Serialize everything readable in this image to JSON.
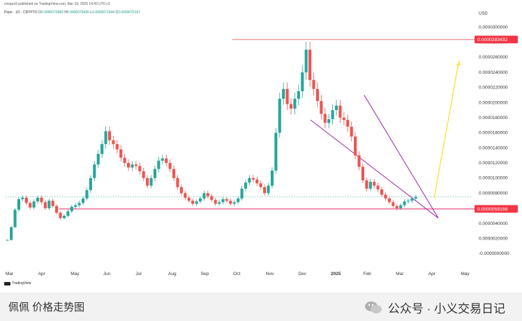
{
  "header": {
    "published": "crispus9 published on TradingView.com, Mar 19, 2025 14:43 UTC+3",
    "symbol": "Pepe · 1D · CRYPTO",
    "ohlc": [
      {
        "label": "O",
        "value": "0.0000072882"
      },
      {
        "label": "H",
        "value": "0.0000075430"
      },
      {
        "label": "L",
        "value": "0.0000071644"
      },
      {
        "label": "C",
        "value": "0.0000075167"
      }
    ]
  },
  "brand": {
    "tradingview": "TradingView"
  },
  "footer": {
    "left": "佩佩 价格走势图",
    "right": "公众号 · 小义交易日记"
  },
  "colors": {
    "up": "#26a69a",
    "down": "#ef5350",
    "support_line": "#e91e63",
    "resistance_line": "#e57373",
    "wedge": "#9c27b0",
    "projection": "#ffd600",
    "price_badge": "#f23645"
  },
  "chart_data": {
    "type": "line",
    "title": "",
    "xlabel": "",
    "ylabel": "",
    "currency": "USD",
    "ylim": [
      -1e-06,
      3.1e-05
    ],
    "y_ticks": [
      "0.0000300000",
      "0.0000280000",
      "0.0000260000",
      "0.0000240000",
      "0.0000220000",
      "0.0000200000",
      "0.0000180000",
      "0.0000160000",
      "0.0000140000",
      "0.0000120000",
      "0.0000100000",
      "0.0000080000",
      "0.0000060000",
      "0.0000040000",
      "0.0000020000",
      "-0.0000000000"
    ],
    "x_ticks": [
      "Mar",
      "Apr",
      "May",
      "Jun",
      "Jul",
      "Aug",
      "Sep",
      "Oct",
      "Nov",
      "Dec",
      "2025",
      "Feb",
      "Mar",
      "Apr",
      "May"
    ],
    "series": [
      {
        "values": [
          1.8e-06,
          3.5e-06,
          5.8e-06,
          7.2e-06,
          7.4e-06,
          6.7e-06,
          6.1e-06,
          6.9e-06,
          7.4e-06,
          6.8e-06,
          6e-06,
          7e-06,
          6.3e-06,
          5.4e-06,
          4.7e-06,
          5e-06,
          5.6e-06,
          6.2e-06,
          6.4e-06,
          6.7e-06,
          7.3e-06,
          8.4e-06,
          1e-05,
          1.18e-05,
          1.32e-05,
          1.45e-05,
          1.62e-05,
          1.5e-05,
          1.45e-05,
          1.38e-05,
          1.27e-05,
          1.2e-05,
          1.14e-05,
          1.18e-05,
          1.16e-05,
          1.09e-05,
          1e-05,
          9e-06,
          1e-05,
          1.12e-05,
          1.23e-05,
          1.26e-05,
          1.2e-05,
          1.12e-05,
          1e-05,
          8.8e-06,
          8e-06,
          7.4e-06,
          7e-06,
          6.6e-06,
          6.9e-06,
          7.3e-06,
          8e-06,
          7.6e-06,
          7.1e-06,
          6.6e-06,
          6.8e-06,
          7.2e-06,
          7e-06,
          6.6e-06,
          6.8e-06,
          7.3e-06,
          8.6e-06,
          9.4e-06,
          1e-05,
          9.8e-06,
          9.3e-06,
          8.8e-06,
          8e-06,
          9e-06,
          1.1e-05,
          1.6e-05,
          2.05e-05,
          2.18e-05,
          1.98e-05,
          1.92e-05,
          2.05e-05,
          2.15e-05,
          2.4e-05,
          2.7e-05,
          2.3e-05,
          2.18e-05,
          2.02e-05,
          1.85e-05,
          1.73e-05,
          1.78e-05,
          1.9e-05,
          1.96e-05,
          1.8e-05,
          1.77e-05,
          1.68e-05,
          1.55e-05,
          1.3e-05,
          1.15e-05,
          9.7e-06,
          8.6e-06,
          9.5e-06,
          9e-06,
          8.5e-06,
          7.8e-06,
          7.3e-06,
          6.8e-06,
          6.3e-06,
          6e-06,
          6.4e-06,
          6.9e-06,
          7e-06,
          7.3e-06,
          7.5e-06
        ]
      }
    ],
    "last_date_label": "Mar 19, 2025",
    "price_labels": [
      {
        "value": 2.83432e-05,
        "text": "0.0000283432"
      },
      {
        "value": 5.9198e-06,
        "text": "0.0000059198"
      }
    ],
    "annotations": [
      {
        "kind": "horizontal_line",
        "name": "resistance",
        "y": 2.83432e-05
      },
      {
        "kind": "horizontal_line",
        "name": "support",
        "y": 5.9198e-06
      },
      {
        "kind": "wedge_upper",
        "from": {
          "t": 0.87,
          "y": 2.1e-05
        },
        "to": {
          "t": 1.05,
          "y": 4.7e-06
        }
      },
      {
        "kind": "wedge_lower",
        "from": {
          "t": 0.74,
          "y": 1.77e-05
        },
        "to": {
          "t": 1.05,
          "y": 4.7e-06
        }
      },
      {
        "kind": "projection_arrow",
        "from": {
          "t": 1.04,
          "y": 7.4e-06
        },
        "to": {
          "t": 1.1,
          "y": 2.55e-05
        }
      }
    ]
  }
}
